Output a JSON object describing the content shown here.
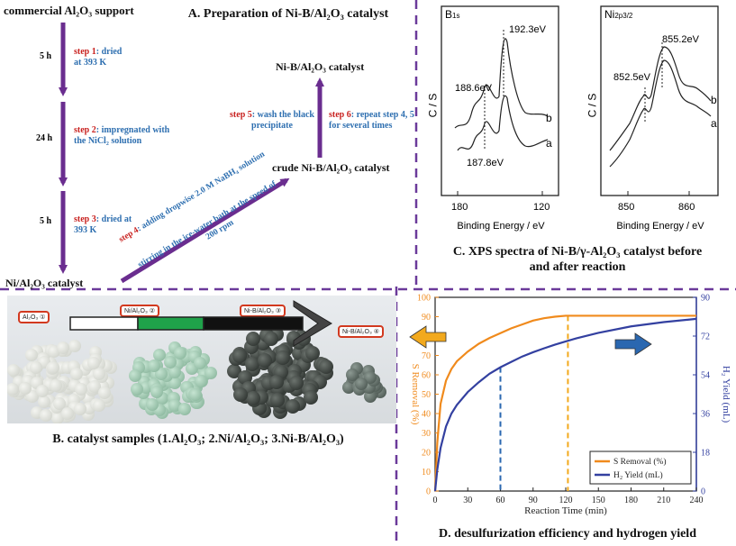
{
  "panel_a": {
    "title": "A. Preparation of Ni-B/Al₂O₃ catalyst",
    "start_label": "commercial Al₂O₃ support",
    "times": [
      "5 h",
      "24 h",
      "5 h"
    ],
    "step1": {
      "num": "step 1",
      "text1": ": dried",
      "text2": "at 393 K"
    },
    "step2": {
      "num": "step 2",
      "text1": ": impregnated with",
      "text2": "the NiCl₂ solution"
    },
    "step3": {
      "num": "step 3",
      "text1": ": dried at",
      "text2": "393 K"
    },
    "intermediate_label": "Ni/Al₂O₃ catalyst",
    "step4": {
      "num": "step 4",
      "text1": ": adding dropwise 2.0 M NaBH₄ solution",
      "text2": "stirring in the ice-water bath at the speed of",
      "text3": "200 rpm"
    },
    "crude_label": "crude Ni-B/Al₂O₃ catalyst",
    "step5": {
      "num": "step 5",
      "text1": ": wash the black",
      "text2": "precipitate"
    },
    "step6": {
      "num": "step 6",
      "text1": ": repeat step 4, 5",
      "text2": "for several times"
    },
    "final_label": "Ni-B/Al₂O₃ catalyst"
  },
  "panel_b": {
    "caption": "B. catalyst samples (1.Al₂O₃; 2.Ni/Al₂O₃; 3.Ni-B/Al₂O₃)",
    "tags": [
      "Al₂O₃ ①",
      "Ni/Al₂O₃ ②",
      "Ni-B/Al₂O₃ ③",
      "Ni-B/Al₂O₃ ④"
    ]
  },
  "panel_c": {
    "caption_line1": "C. XPS spectra of Ni-B/γ-Al₂O₃ catalyst before",
    "caption_line2": "and after reaction",
    "ylabel": "C / S",
    "xlabel": "Binding Energy / eV",
    "b1s": {
      "title_main": "B",
      "title_sub": "1s",
      "peaks": [
        "192.3eV",
        "188.6eV",
        "187.8eV"
      ],
      "ticks": [
        "180",
        "120"
      ],
      "curve_labels": [
        "b",
        "a"
      ]
    },
    "ni2p": {
      "title_main": "Ni",
      "title_sub": "2p3/2",
      "peaks": [
        "855.2eV",
        "852.5eV"
      ],
      "ticks": [
        "850",
        "860"
      ],
      "curve_labels": [
        "b",
        "a"
      ]
    }
  },
  "panel_d": {
    "caption": "D. desulfurization efficiency and hydrogen yield",
    "colors": {
      "s_removal": "#f08a1c",
      "h2": "#3340a0",
      "blue_arrow": "#2a67b0",
      "orange_arrow": "#f2a91d"
    },
    "chart_data": {
      "type": "line",
      "xlabel": "Reaction Time (min)",
      "ylabel_left": "S Removal (%)",
      "ylabel_right": "H₂ Yield (mL)",
      "xlim": [
        0,
        240
      ],
      "ylim_left": [
        0,
        100
      ],
      "ylim_right": [
        0,
        90
      ],
      "x_ticks": [
        "0",
        "30",
        "60",
        "90",
        "120",
        "150",
        "180",
        "210",
        "240"
      ],
      "left_ticks": [
        "0",
        "10",
        "20",
        "30",
        "40",
        "50",
        "60",
        "70",
        "80",
        "90",
        "100"
      ],
      "right_ticks": [
        "0",
        "18",
        "36",
        "54",
        "72",
        "90"
      ],
      "legend": [
        "S Removal (%)",
        "H₂ Yield (mL)"
      ],
      "legend_position": "bottom-right",
      "vlines": [
        60,
        122
      ],
      "series": [
        {
          "name": "S Removal (%)",
          "x": [
            0,
            2,
            5,
            10,
            15,
            20,
            30,
            40,
            50,
            60,
            70,
            80,
            90,
            100,
            110,
            120,
            130,
            150,
            180,
            210,
            240
          ],
          "values": [
            0,
            25,
            45,
            57,
            63,
            67,
            72,
            76,
            79,
            81.5,
            84,
            86,
            88,
            89.2,
            90,
            90.5,
            90.5,
            90.5,
            90.5,
            90.5,
            90.5
          ]
        },
        {
          "name": "H₂ Yield (mL)",
          "x": [
            0,
            2,
            5,
            10,
            15,
            20,
            30,
            40,
            50,
            60,
            70,
            80,
            90,
            100,
            110,
            120,
            130,
            150,
            180,
            210,
            240
          ],
          "values": [
            0,
            10,
            20,
            30,
            36,
            40,
            46,
            50.5,
            54.5,
            57.5,
            60,
            62.5,
            64.5,
            66.3,
            68,
            69.5,
            71,
            73.5,
            76.5,
            78.5,
            80
          ]
        }
      ]
    }
  }
}
